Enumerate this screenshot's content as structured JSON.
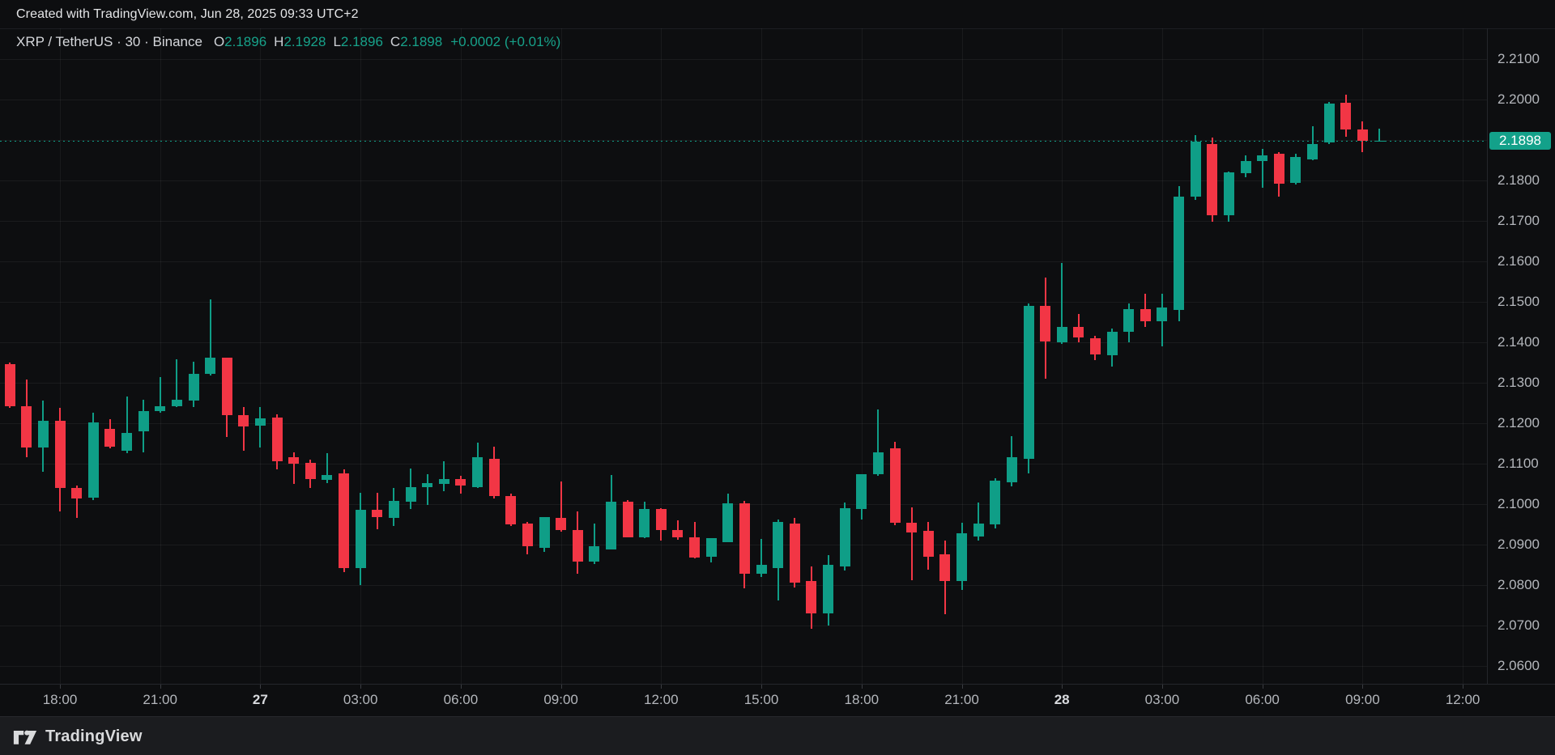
{
  "attribution": {
    "text": "Created with TradingView.com, Jun 28, 2025 09:33 UTC+2"
  },
  "legend": {
    "symbol_title": "XRP / TetherUS · 30 · Binance",
    "ohlc": [
      {
        "label": "O",
        "value": "2.1896"
      },
      {
        "label": "H",
        "value": "2.1928"
      },
      {
        "label": "L",
        "value": "2.1896"
      },
      {
        "label": "C",
        "value": "2.1898"
      }
    ],
    "change": "+0.0002 (+0.01%)"
  },
  "price_scale": {
    "labels": [
      {
        "text": "2.2100",
        "price": 2.21
      },
      {
        "text": "2.2000",
        "price": 2.2
      },
      {
        "text": "2.1800",
        "price": 2.18
      },
      {
        "text": "2.1700",
        "price": 2.17
      },
      {
        "text": "2.1600",
        "price": 2.16
      },
      {
        "text": "2.1500",
        "price": 2.15
      },
      {
        "text": "2.1400",
        "price": 2.14
      },
      {
        "text": "2.1300",
        "price": 2.13
      },
      {
        "text": "2.1200",
        "price": 2.12
      },
      {
        "text": "2.1100",
        "price": 2.11
      },
      {
        "text": "2.1000",
        "price": 2.1
      },
      {
        "text": "2.0900",
        "price": 2.09
      },
      {
        "text": "2.0800",
        "price": 2.08
      },
      {
        "text": "2.0700",
        "price": 2.07
      },
      {
        "text": "2.0600",
        "price": 2.06
      }
    ],
    "last_price_label": {
      "text": "2.1898",
      "price": 2.1898
    }
  },
  "time_scale": {
    "labels": [
      {
        "text": "18:00",
        "slot": 3,
        "bold": false
      },
      {
        "text": "21:00",
        "slot": 9,
        "bold": false
      },
      {
        "text": "27",
        "slot": 15,
        "bold": true
      },
      {
        "text": "03:00",
        "slot": 21,
        "bold": false
      },
      {
        "text": "06:00",
        "slot": 27,
        "bold": false
      },
      {
        "text": "09:00",
        "slot": 33,
        "bold": false
      },
      {
        "text": "12:00",
        "slot": 39,
        "bold": false
      },
      {
        "text": "15:00",
        "slot": 45,
        "bold": false
      },
      {
        "text": "18:00",
        "slot": 51,
        "bold": false
      },
      {
        "text": "21:00",
        "slot": 57,
        "bold": false
      },
      {
        "text": "28",
        "slot": 63,
        "bold": true
      },
      {
        "text": "03:00",
        "slot": 69,
        "bold": false
      },
      {
        "text": "06:00",
        "slot": 75,
        "bold": false
      },
      {
        "text": "09:00",
        "slot": 81,
        "bold": false
      },
      {
        "text": "12:00",
        "slot": 87,
        "bold": false
      }
    ]
  },
  "footer": {
    "brand": "TradingView"
  },
  "colors": {
    "background": "#0d0e10",
    "up": "#0f9e87",
    "down": "#f23645",
    "accent_badge": "#13a18a",
    "axis_text": "#b4b7bc",
    "legend_text": "#d6d8dc",
    "value_text": "#17a28a"
  },
  "chart_data": {
    "type": "candlestick",
    "title": "XRP / TetherUS · 30 · Binance",
    "symbol": "XRP/USDT",
    "interval": "30m",
    "exchange": "Binance",
    "ylim": [
      2.055,
      2.2175
    ],
    "grid_step": 0.01,
    "last_price": 2.1898,
    "legend_note": "x axis: Jun 26 16:30 → Jun 28 09:30 UTC+2, 30-minute bars",
    "candles": [
      {
        "t": "26 16:30",
        "o": 2.1345,
        "h": 2.135,
        "l": 2.1238,
        "c": 2.1242
      },
      {
        "t": "26 17:00",
        "o": 2.1242,
        "h": 2.1307,
        "l": 2.1115,
        "c": 2.1139
      },
      {
        "t": "26 17:30",
        "o": 2.1139,
        "h": 2.1255,
        "l": 2.1079,
        "c": 2.1205
      },
      {
        "t": "26 18:00",
        "o": 2.1205,
        "h": 2.1238,
        "l": 2.0981,
        "c": 2.104
      },
      {
        "t": "26 18:30",
        "o": 2.104,
        "h": 2.1045,
        "l": 2.0966,
        "c": 2.1013
      },
      {
        "t": "26 19:00",
        "o": 2.1015,
        "h": 2.1225,
        "l": 2.101,
        "c": 2.1202
      },
      {
        "t": "26 19:30",
        "o": 2.1185,
        "h": 2.1209,
        "l": 2.1138,
        "c": 2.1141
      },
      {
        "t": "26 20:00",
        "o": 2.1131,
        "h": 2.1265,
        "l": 2.1125,
        "c": 2.1175
      },
      {
        "t": "26 20:30",
        "o": 2.1179,
        "h": 2.1258,
        "l": 2.1128,
        "c": 2.1229
      },
      {
        "t": "26 21:00",
        "o": 2.1229,
        "h": 2.1313,
        "l": 2.1225,
        "c": 2.1242
      },
      {
        "t": "26 21:30",
        "o": 2.1242,
        "h": 2.1358,
        "l": 2.124,
        "c": 2.1258
      },
      {
        "t": "26 22:00",
        "o": 2.1255,
        "h": 2.1351,
        "l": 2.124,
        "c": 2.1322
      },
      {
        "t": "26 22:30",
        "o": 2.1322,
        "h": 2.1505,
        "l": 2.1318,
        "c": 2.1362
      },
      {
        "t": "26 23:00",
        "o": 2.1362,
        "h": 2.1362,
        "l": 2.1165,
        "c": 2.1219
      },
      {
        "t": "26 23:30",
        "o": 2.1219,
        "h": 2.124,
        "l": 2.1132,
        "c": 2.1191
      },
      {
        "t": "27 00:00",
        "o": 2.1193,
        "h": 2.1239,
        "l": 2.114,
        "c": 2.1211
      },
      {
        "t": "27 00:30",
        "o": 2.1213,
        "h": 2.1222,
        "l": 2.1085,
        "c": 2.1106
      },
      {
        "t": "27 01:00",
        "o": 2.1115,
        "h": 2.1127,
        "l": 2.1049,
        "c": 2.1099
      },
      {
        "t": "27 01:30",
        "o": 2.1102,
        "h": 2.1109,
        "l": 2.1039,
        "c": 2.1062
      },
      {
        "t": "27 02:00",
        "o": 2.1059,
        "h": 2.1125,
        "l": 2.1052,
        "c": 2.1072
      },
      {
        "t": "27 02:30",
        "o": 2.1075,
        "h": 2.1085,
        "l": 2.0832,
        "c": 2.0842
      },
      {
        "t": "27 03:00",
        "o": 2.0842,
        "h": 2.1028,
        "l": 2.0799,
        "c": 2.0985
      },
      {
        "t": "27 03:30",
        "o": 2.0985,
        "h": 2.1028,
        "l": 2.0938,
        "c": 2.0968
      },
      {
        "t": "27 04:00",
        "o": 2.0965,
        "h": 2.1039,
        "l": 2.0945,
        "c": 2.1007
      },
      {
        "t": "27 04:30",
        "o": 2.1005,
        "h": 2.1087,
        "l": 2.0988,
        "c": 2.1042
      },
      {
        "t": "27 05:00",
        "o": 2.1042,
        "h": 2.1074,
        "l": 2.0998,
        "c": 2.1052
      },
      {
        "t": "27 05:30",
        "o": 2.1049,
        "h": 2.1105,
        "l": 2.1032,
        "c": 2.1062
      },
      {
        "t": "27 06:00",
        "o": 2.1062,
        "h": 2.1069,
        "l": 2.1026,
        "c": 2.1046
      },
      {
        "t": "27 06:30",
        "o": 2.1042,
        "h": 2.1151,
        "l": 2.104,
        "c": 2.1115
      },
      {
        "t": "27 07:00",
        "o": 2.1112,
        "h": 2.1142,
        "l": 2.1013,
        "c": 2.1019
      },
      {
        "t": "27 07:30",
        "o": 2.1019,
        "h": 2.1025,
        "l": 2.0945,
        "c": 2.0949
      },
      {
        "t": "27 08:00",
        "o": 2.0952,
        "h": 2.0955,
        "l": 2.0875,
        "c": 2.0895
      },
      {
        "t": "27 08:30",
        "o": 2.0892,
        "h": 2.0968,
        "l": 2.0882,
        "c": 2.0968
      },
      {
        "t": "27 09:00",
        "o": 2.0965,
        "h": 2.1055,
        "l": 2.0932,
        "c": 2.0935
      },
      {
        "t": "27 09:30",
        "o": 2.0935,
        "h": 2.0981,
        "l": 2.0828,
        "c": 2.0858
      },
      {
        "t": "27 10:00",
        "o": 2.0858,
        "h": 2.0952,
        "l": 2.0852,
        "c": 2.0895
      },
      {
        "t": "27 10:30",
        "o": 2.0887,
        "h": 2.1071,
        "l": 2.0887,
        "c": 2.1006
      },
      {
        "t": "27 11:00",
        "o": 2.1006,
        "h": 2.101,
        "l": 2.0918,
        "c": 2.0918
      },
      {
        "t": "27 11:30",
        "o": 2.0918,
        "h": 2.1005,
        "l": 2.0915,
        "c": 2.0988
      },
      {
        "t": "27 12:00",
        "o": 2.0988,
        "h": 2.099,
        "l": 2.0909,
        "c": 2.0935
      },
      {
        "t": "27 12:30",
        "o": 2.0935,
        "h": 2.0959,
        "l": 2.0912,
        "c": 2.0918
      },
      {
        "t": "27 13:00",
        "o": 2.0918,
        "h": 2.0955,
        "l": 2.0865,
        "c": 2.0868
      },
      {
        "t": "27 13:30",
        "o": 2.087,
        "h": 2.0915,
        "l": 2.0855,
        "c": 2.0915
      },
      {
        "t": "27 14:00",
        "o": 2.0905,
        "h": 2.1026,
        "l": 2.0905,
        "c": 2.1002
      },
      {
        "t": "27 14:30",
        "o": 2.1002,
        "h": 2.1008,
        "l": 2.0792,
        "c": 2.0828
      },
      {
        "t": "27 15:00",
        "o": 2.0827,
        "h": 2.0913,
        "l": 2.082,
        "c": 2.0849
      },
      {
        "t": "27 15:30",
        "o": 2.0842,
        "h": 2.0961,
        "l": 2.0762,
        "c": 2.0955
      },
      {
        "t": "27 16:00",
        "o": 2.0952,
        "h": 2.0965,
        "l": 2.0793,
        "c": 2.0805
      },
      {
        "t": "27 16:30",
        "o": 2.0809,
        "h": 2.0846,
        "l": 2.0692,
        "c": 2.0729
      },
      {
        "t": "27 17:00",
        "o": 2.0729,
        "h": 2.0873,
        "l": 2.0699,
        "c": 2.0849
      },
      {
        "t": "27 17:30",
        "o": 2.0846,
        "h": 2.1003,
        "l": 2.0836,
        "c": 2.0989
      },
      {
        "t": "27 18:00",
        "o": 2.0987,
        "h": 2.1074,
        "l": 2.0961,
        "c": 2.1074
      },
      {
        "t": "27 18:30",
        "o": 2.1074,
        "h": 2.1234,
        "l": 2.107,
        "c": 2.1128
      },
      {
        "t": "27 19:00",
        "o": 2.1137,
        "h": 2.1153,
        "l": 2.0947,
        "c": 2.0953
      },
      {
        "t": "27 19:30",
        "o": 2.0953,
        "h": 2.0991,
        "l": 2.0812,
        "c": 2.093
      },
      {
        "t": "27 20:00",
        "o": 2.0933,
        "h": 2.0955,
        "l": 2.0837,
        "c": 2.087
      },
      {
        "t": "27 20:30",
        "o": 2.0875,
        "h": 2.091,
        "l": 2.0727,
        "c": 2.081
      },
      {
        "t": "27 21:00",
        "o": 2.081,
        "h": 2.0953,
        "l": 2.0787,
        "c": 2.0927
      },
      {
        "t": "27 21:30",
        "o": 2.092,
        "h": 2.1003,
        "l": 2.091,
        "c": 2.0951
      },
      {
        "t": "27 22:00",
        "o": 2.095,
        "h": 2.1063,
        "l": 2.094,
        "c": 2.1057
      },
      {
        "t": "27 22:30",
        "o": 2.1053,
        "h": 2.1167,
        "l": 2.1043,
        "c": 2.1115
      },
      {
        "t": "27 23:00",
        "o": 2.1112,
        "h": 2.1495,
        "l": 2.1075,
        "c": 2.1489
      },
      {
        "t": "27 23:30",
        "o": 2.1489,
        "h": 2.156,
        "l": 2.1309,
        "c": 2.1402
      },
      {
        "t": "28 00:00",
        "o": 2.14,
        "h": 2.1595,
        "l": 2.1395,
        "c": 2.1437
      },
      {
        "t": "28 00:30",
        "o": 2.1437,
        "h": 2.147,
        "l": 2.14,
        "c": 2.1412
      },
      {
        "t": "28 01:00",
        "o": 2.141,
        "h": 2.1415,
        "l": 2.1355,
        "c": 2.137
      },
      {
        "t": "28 01:30",
        "o": 2.1368,
        "h": 2.1433,
        "l": 2.134,
        "c": 2.1425
      },
      {
        "t": "28 02:00",
        "o": 2.1425,
        "h": 2.1495,
        "l": 2.14,
        "c": 2.1482
      },
      {
        "t": "28 02:30",
        "o": 2.1482,
        "h": 2.1519,
        "l": 2.1438,
        "c": 2.1452
      },
      {
        "t": "28 03:00",
        "o": 2.1452,
        "h": 2.152,
        "l": 2.139,
        "c": 2.1486
      },
      {
        "t": "28 03:30",
        "o": 2.1479,
        "h": 2.1785,
        "l": 2.1452,
        "c": 2.176
      },
      {
        "t": "28 04:00",
        "o": 2.176,
        "h": 2.1911,
        "l": 2.1751,
        "c": 2.1895
      },
      {
        "t": "28 04:30",
        "o": 2.189,
        "h": 2.1906,
        "l": 2.1698,
        "c": 2.1713
      },
      {
        "t": "28 05:00",
        "o": 2.1713,
        "h": 2.1822,
        "l": 2.1697,
        "c": 2.182
      },
      {
        "t": "28 05:30",
        "o": 2.1817,
        "h": 2.1862,
        "l": 2.1807,
        "c": 2.1847
      },
      {
        "t": "28 06:00",
        "o": 2.1847,
        "h": 2.1877,
        "l": 2.1782,
        "c": 2.1862
      },
      {
        "t": "28 06:30",
        "o": 2.1865,
        "h": 2.187,
        "l": 2.176,
        "c": 2.1791
      },
      {
        "t": "28 07:00",
        "o": 2.1793,
        "h": 2.1865,
        "l": 2.179,
        "c": 2.1857
      },
      {
        "t": "28 07:30",
        "o": 2.1852,
        "h": 2.1934,
        "l": 2.185,
        "c": 2.1889
      },
      {
        "t": "28 08:00",
        "o": 2.1894,
        "h": 2.1993,
        "l": 2.1889,
        "c": 2.1989
      },
      {
        "t": "28 08:30",
        "o": 2.1991,
        "h": 2.2012,
        "l": 2.1908,
        "c": 2.1925
      },
      {
        "t": "28 09:00",
        "o": 2.1925,
        "h": 2.1945,
        "l": 2.1869,
        "c": 2.1898
      },
      {
        "t": "28 09:30",
        "o": 2.1896,
        "h": 2.1928,
        "l": 2.1896,
        "c": 2.1898
      }
    ]
  }
}
